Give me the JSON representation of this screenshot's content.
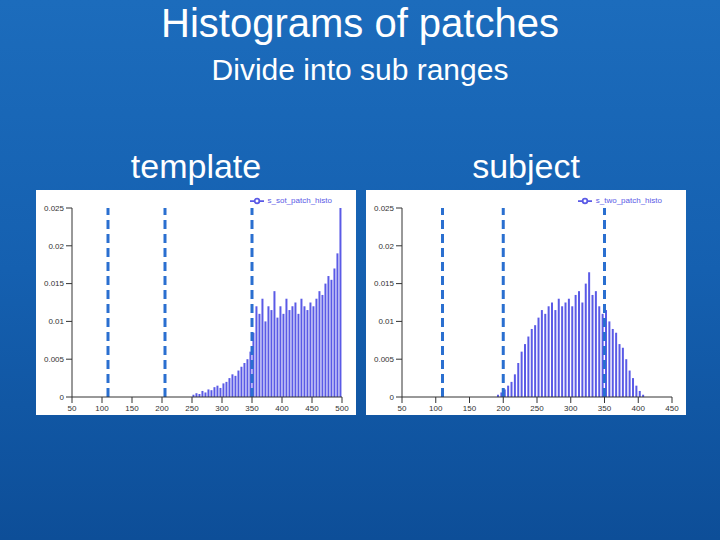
{
  "title": "Histograms of patches",
  "subtitle": "Divide into sub ranges",
  "chart_data": [
    {
      "type": "histogram",
      "title": "template",
      "bins": [
        250,
        255,
        260,
        265,
        270,
        275,
        280,
        285,
        290,
        295,
        300,
        305,
        310,
        315,
        320,
        325,
        330,
        335,
        340,
        345,
        350,
        355,
        360,
        365,
        370,
        375,
        380,
        385,
        390,
        395,
        400,
        405,
        410,
        415,
        420,
        425,
        430,
        435,
        440,
        445,
        450,
        455,
        460,
        465,
        470,
        475,
        480,
        485,
        490,
        495,
        500
      ],
      "series": [
        {
          "name": "s_sot_patch_histo",
          "color": "#5a5ae6",
          "values": [
            0.0003,
            0.0005,
            0.0004,
            0.0008,
            0.0006,
            0.001,
            0.0009,
            0.0013,
            0.0015,
            0.0012,
            0.0018,
            0.002,
            0.0025,
            0.003,
            0.0028,
            0.0035,
            0.004,
            0.0045,
            0.005,
            0.006,
            0.0085,
            0.012,
            0.011,
            0.013,
            0.01,
            0.012,
            0.0115,
            0.014,
            0.0105,
            0.012,
            0.011,
            0.013,
            0.0115,
            0.012,
            0.0125,
            0.011,
            0.013,
            0.012,
            0.0115,
            0.0125,
            0.012,
            0.013,
            0.014,
            0.0135,
            0.015,
            0.016,
            0.0155,
            0.017,
            0.019,
            0.025
          ]
        }
      ],
      "dividers": [
        110,
        205,
        350
      ],
      "divider_color": "#2a6fd0",
      "xlim": [
        50,
        500
      ],
      "xticks": [
        50,
        100,
        150,
        200,
        250,
        300,
        350,
        400,
        450,
        500
      ],
      "ylim": [
        0,
        0.025
      ],
      "yticks": [
        0,
        0.005,
        0.01,
        0.015,
        0.02,
        0.025
      ],
      "legend": "upper right"
    },
    {
      "type": "histogram",
      "title": "subject",
      "bins": [
        190,
        195,
        200,
        205,
        210,
        215,
        220,
        225,
        230,
        235,
        240,
        245,
        250,
        255,
        260,
        265,
        270,
        275,
        280,
        285,
        290,
        295,
        300,
        305,
        310,
        315,
        320,
        325,
        330,
        335,
        340,
        345,
        350,
        355,
        360,
        365,
        370,
        375,
        380,
        385,
        390,
        395,
        400,
        405,
        410
      ],
      "series": [
        {
          "name": "s_two_patch_histo",
          "color": "#5a5ae6",
          "values": [
            0.0003,
            0.0006,
            0.001,
            0.0015,
            0.002,
            0.003,
            0.0045,
            0.006,
            0.007,
            0.008,
            0.009,
            0.0095,
            0.0105,
            0.0115,
            0.011,
            0.012,
            0.0125,
            0.0115,
            0.013,
            0.012,
            0.0125,
            0.013,
            0.012,
            0.0135,
            0.014,
            0.0125,
            0.015,
            0.0165,
            0.0135,
            0.014,
            0.012,
            0.011,
            0.0115,
            0.01,
            0.009,
            0.0085,
            0.007,
            0.0065,
            0.005,
            0.0035,
            0.0025,
            0.0015,
            0.0008,
            0.0003
          ]
        }
      ],
      "dividers": [
        110,
        200,
        350
      ],
      "divider_color": "#2a6fd0",
      "xlim": [
        50,
        450
      ],
      "xticks": [
        50,
        100,
        150,
        200,
        250,
        300,
        350,
        400,
        450
      ],
      "ylim": [
        0,
        0.025
      ],
      "yticks": [
        0,
        0.005,
        0.01,
        0.015,
        0.02,
        0.025
      ],
      "legend": "upper right"
    }
  ]
}
